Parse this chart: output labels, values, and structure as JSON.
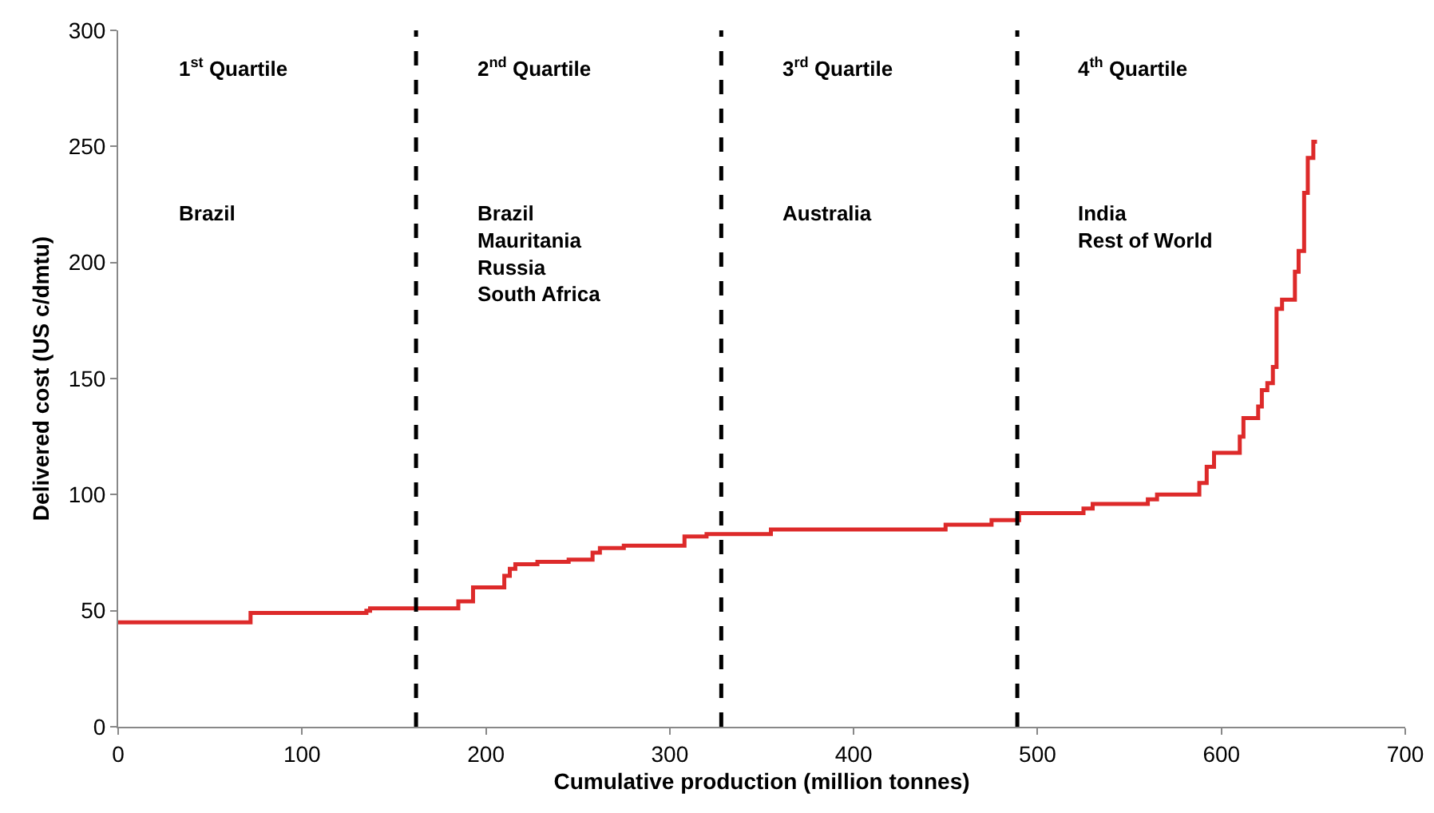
{
  "chart_data": {
    "type": "step",
    "xlabel": "Cumulative production (million tonnes)",
    "ylabel": "Delivered cost (US c/dmtu)",
    "x": [
      0,
      72,
      135,
      137,
      185,
      193,
      210,
      213,
      216,
      228,
      245,
      258,
      262,
      275,
      308,
      320,
      355,
      450,
      475,
      490,
      525,
      530,
      560,
      565,
      588,
      592,
      596,
      610,
      612,
      620,
      622,
      625,
      628,
      630,
      633,
      640,
      642,
      645,
      647,
      650,
      652
    ],
    "series": [
      {
        "color": "#dd2a2a",
        "values": [
          45,
          49,
          50,
          51,
          54,
          60,
          65,
          68,
          70,
          71,
          72,
          75,
          77,
          78,
          82,
          83,
          85,
          87,
          89,
          92,
          94,
          96,
          98,
          100,
          105,
          112,
          118,
          125,
          133,
          138,
          145,
          148,
          155,
          180,
          184,
          196,
          205,
          230,
          245,
          252,
          252
        ]
      }
    ],
    "xlim": [
      0,
      700
    ],
    "xticks": [
      0,
      100,
      200,
      300,
      400,
      500,
      600,
      700
    ],
    "ylim": [
      0,
      300
    ],
    "yticks": [
      0,
      50,
      100,
      150,
      200,
      250,
      300
    ],
    "grid": false,
    "marker": "none",
    "line_style": "solid",
    "ref_lines": [
      {
        "axis": "x",
        "value": 162,
        "color": "#000000",
        "line_style": "dashed"
      },
      {
        "axis": "x",
        "value": 328,
        "color": "#000000",
        "line_style": "dashed"
      },
      {
        "axis": "x",
        "value": 489,
        "color": "#000000",
        "line_style": "dashed"
      }
    ],
    "annotations": [
      "1$^{st}$ Quartile",
      "2$^{nd}$ Quartile",
      "3$^{rd}$ Quartile",
      "4$^{th}$ Quartile",
      "Brazil",
      "Brazil\nMauritania\nRussia\nSouth Africa",
      "Australia",
      "India\nRest of World"
    ]
  }
}
